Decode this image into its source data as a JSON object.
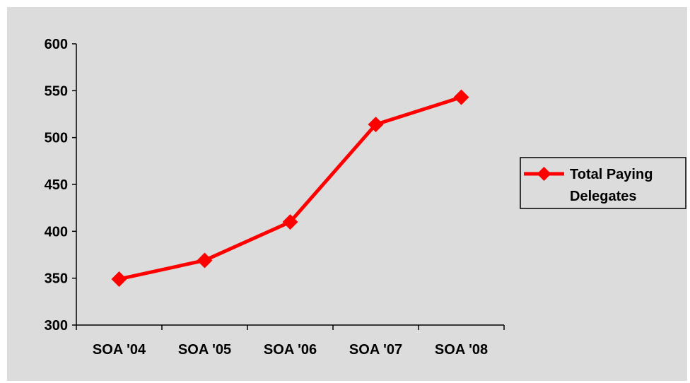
{
  "chart_data": {
    "type": "line",
    "categories": [
      "SOA '04",
      "SOA '05",
      "SOA '06",
      "SOA '07",
      "SOA '08"
    ],
    "series": [
      {
        "name": "Total Paying Delegates",
        "values": [
          349,
          369,
          410,
          514,
          543
        ],
        "color": "#ff0000",
        "marker": "diamond"
      }
    ],
    "ylim": [
      300,
      600
    ],
    "yticks": [
      300,
      350,
      400,
      450,
      500,
      550,
      600
    ],
    "legend": {
      "position": "right",
      "lines": [
        "Total Paying",
        "Delegates"
      ]
    },
    "grid": false,
    "background": "#dcdcdc"
  }
}
